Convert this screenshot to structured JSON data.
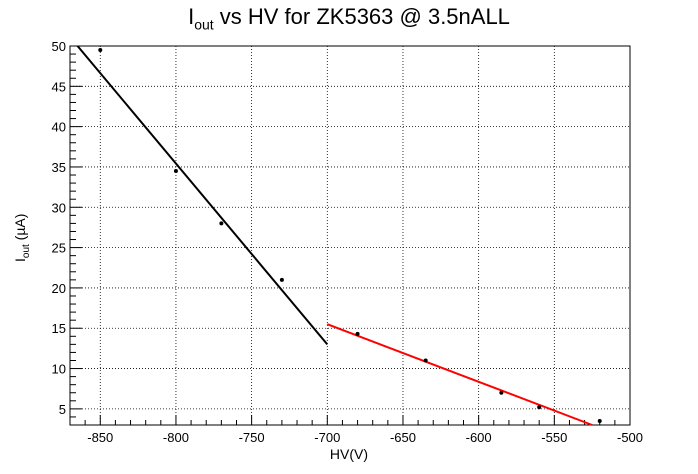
{
  "title": {
    "main": "I",
    "sub": "out",
    "rest": " vs HV for ZK5363 @ 3.5nALL"
  },
  "xlabel": "HV(V)",
  "ylabel": {
    "main": "I",
    "sub": "out",
    "rest": " (µA)"
  },
  "chart_data": {
    "type": "scatter",
    "xlim": [
      -870,
      -500
    ],
    "ylim": [
      3,
      50
    ],
    "grid": true,
    "x_ticks": [
      -850,
      -800,
      -750,
      -700,
      -650,
      -600,
      -550,
      -500
    ],
    "y_ticks": [
      5,
      10,
      15,
      20,
      25,
      30,
      35,
      40,
      45,
      50
    ],
    "series": [
      {
        "color": "#000000",
        "points": {
          "x": [
            -850,
            -800,
            -770,
            -730
          ],
          "y": [
            49.5,
            34.5,
            28.0,
            21.0
          ]
        },
        "fit": {
          "x": [
            -865,
            -700
          ],
          "y": [
            50.0,
            13.0
          ]
        }
      },
      {
        "color": "#ff0000",
        "points": {
          "x": [
            -680,
            -635,
            -585,
            -560,
            -520
          ],
          "y": [
            14.3,
            11.0,
            7.0,
            5.2,
            3.5
          ]
        },
        "fit": {
          "x": [
            -700,
            -525
          ],
          "y": [
            15.5,
            3.0
          ]
        }
      }
    ]
  }
}
